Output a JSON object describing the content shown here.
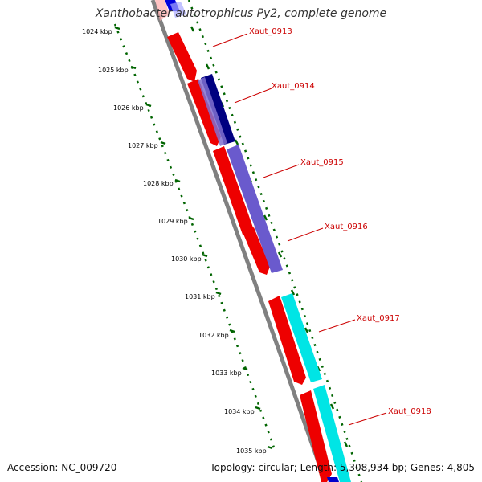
{
  "title": "Xanthobacter autotrophicus Py2, complete genome",
  "footer": {
    "accession": "Accession: NC_009720",
    "summary": "Topology: circular; Length: 5,308,934 bp; Genes: 4,805"
  },
  "colors": {
    "backbone": "#808080",
    "cds": "#ff0000",
    "tick": "#006400",
    "gene_label": "#cc0000",
    "kbp_label": "#000000"
  },
  "kbp_ticks": [
    "1024 kbp",
    "1025 kbp",
    "1026 kbp",
    "1027 kbp",
    "1028 kbp",
    "1029 kbp",
    "1030 kbp",
    "1031 kbp",
    "1032 kbp",
    "1033 kbp",
    "1034 kbp",
    "1035 kbp"
  ],
  "genes": [
    "Xaut_0913",
    "Xaut_0914",
    "Xaut_0915",
    "Xaut_0916",
    "Xaut_0917",
    "Xaut_0918"
  ]
}
